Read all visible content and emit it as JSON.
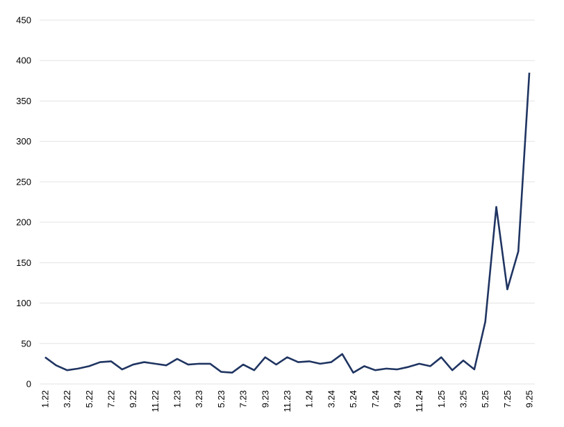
{
  "chart_data": {
    "type": "line",
    "categories": [
      "1.22",
      null,
      "3.22",
      null,
      "5.22",
      null,
      "7.22",
      null,
      "9.22",
      null,
      "11.22",
      null,
      "1.23",
      null,
      "3.23",
      null,
      "5.23",
      null,
      "7.23",
      null,
      "9.23",
      null,
      "11.23",
      null,
      "1.24",
      null,
      "3.24",
      null,
      "5.24",
      null,
      "7.24",
      null,
      "9.24",
      null,
      "11.24",
      null,
      "1.25",
      null,
      "3.25",
      null,
      "5.25",
      null,
      "7.25",
      null,
      "9.25"
    ],
    "series": [
      {
        "color": "#1f3461",
        "values": [
          33,
          23,
          17,
          19,
          22,
          27,
          28,
          18,
          24,
          27,
          25,
          23,
          31,
          24,
          25,
          25,
          15,
          14,
          24,
          17,
          33,
          24,
          33,
          27,
          28,
          25,
          27,
          37,
          14,
          22,
          17,
          19,
          18,
          21,
          25,
          22,
          33,
          17,
          29,
          18,
          77,
          219,
          117,
          164,
          385
        ]
      }
    ],
    "ylim": [
      0,
      450
    ],
    "yticks": [
      0,
      50,
      100,
      150,
      200,
      250,
      300,
      350,
      400,
      450
    ],
    "grid": true
  }
}
